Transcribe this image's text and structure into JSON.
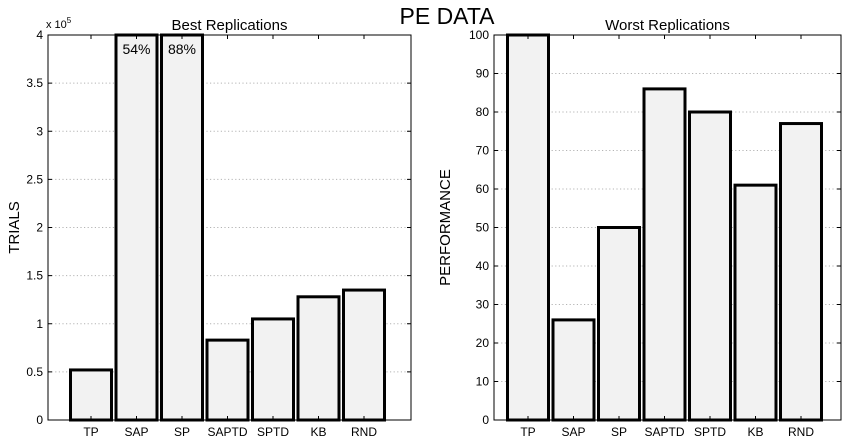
{
  "figure": {
    "title": "PE DATA"
  },
  "chart_data": [
    {
      "type": "bar",
      "title": "Best Replications",
      "xlabel": "",
      "ylabel": "TRIALS",
      "scale_note": {
        "base": "x 10",
        "exponent": "5"
      },
      "categories": [
        "TP",
        "SAP",
        "SP",
        "SAPTD",
        "SPTD",
        "KB",
        "RND"
      ],
      "values": [
        0.52,
        4.0,
        4.0,
        0.83,
        1.05,
        1.28,
        1.35
      ],
      "ylim": [
        0,
        4
      ],
      "yticks": [
        0,
        0.5,
        1,
        1.5,
        2,
        2.5,
        3,
        3.5,
        4
      ],
      "grid": true,
      "annotations": [
        {
          "category": "SAP",
          "text": "54%"
        },
        {
          "category": "SP",
          "text": "88%"
        }
      ]
    },
    {
      "type": "bar",
      "title": "Worst Replications",
      "xlabel": "",
      "ylabel": "PERFORMANCE",
      "categories": [
        "TP",
        "SAP",
        "SP",
        "SAPTD",
        "SPTD",
        "KB",
        "RND"
      ],
      "values": [
        100,
        26,
        50,
        86,
        80,
        61,
        77
      ],
      "ylim": [
        0,
        100
      ],
      "yticks": [
        0,
        10,
        20,
        30,
        40,
        50,
        60,
        70,
        80,
        90,
        100
      ],
      "grid": true,
      "annotations": []
    }
  ]
}
